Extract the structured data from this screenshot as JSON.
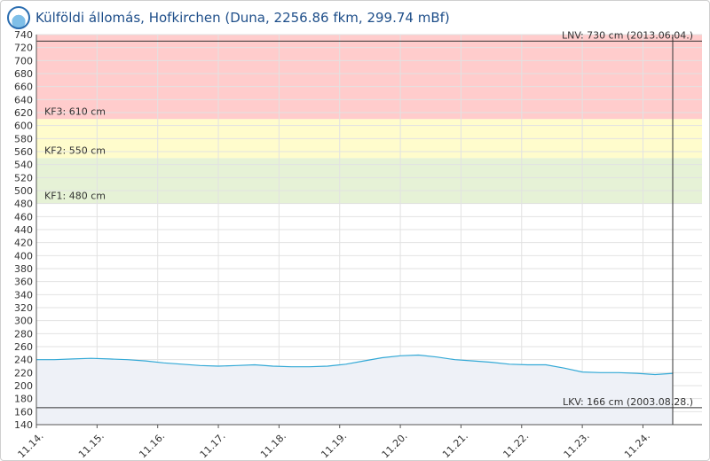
{
  "header": {
    "logo_icon": "ovf-logo-icon",
    "title": "Külföldi állomás, Hofkirchen (Duna, 2256.86 fkm, 299.74 mBf)"
  },
  "chart_data": {
    "type": "line",
    "ylim": [
      140,
      740
    ],
    "ytick_step": 20,
    "x_ticks": [
      "11.14.",
      "11.15.",
      "11.16.",
      "11.17.",
      "11.18.",
      "11.19.",
      "11.20.",
      "11.21.",
      "11.22.",
      "11.23.",
      "11.24."
    ],
    "x_range_days": [
      0,
      10.52
    ],
    "series": [
      {
        "color": "#33a9d6",
        "fill": "#eef1f7",
        "x": [
          0,
          0.3,
          0.6,
          0.9,
          1.2,
          1.5,
          1.8,
          2.1,
          2.4,
          2.7,
          3.0,
          3.3,
          3.6,
          3.9,
          4.2,
          4.5,
          4.8,
          5.1,
          5.4,
          5.7,
          6.0,
          6.3,
          6.6,
          6.9,
          7.2,
          7.5,
          7.8,
          8.1,
          8.4,
          8.7,
          9.0,
          9.3,
          9.6,
          9.9,
          10.2,
          10.5
        ],
        "y": [
          240,
          240,
          241,
          242,
          241,
          240,
          238,
          235,
          233,
          231,
          230,
          231,
          232,
          230,
          229,
          229,
          230,
          233,
          238,
          243,
          246,
          247,
          244,
          240,
          238,
          236,
          233,
          232,
          232,
          227,
          221,
          220,
          220,
          219,
          217,
          219
        ]
      }
    ],
    "bands": [
      {
        "label": "KF3: 610 cm",
        "from": 610,
        "to": 740,
        "color": "#ffcccc"
      },
      {
        "label": "KF2: 550 cm",
        "from": 550,
        "to": 610,
        "color": "#fffccc"
      },
      {
        "label": "KF1: 480 cm",
        "from": 480,
        "to": 550,
        "color": "#e6f2d6"
      }
    ],
    "reference_lines": [
      {
        "label": "LNV: 730 cm (2013.06.04.)",
        "value": 730
      },
      {
        "label": "LKV: 166 cm (2003.08.28.)",
        "value": 166
      }
    ],
    "grid": true
  }
}
